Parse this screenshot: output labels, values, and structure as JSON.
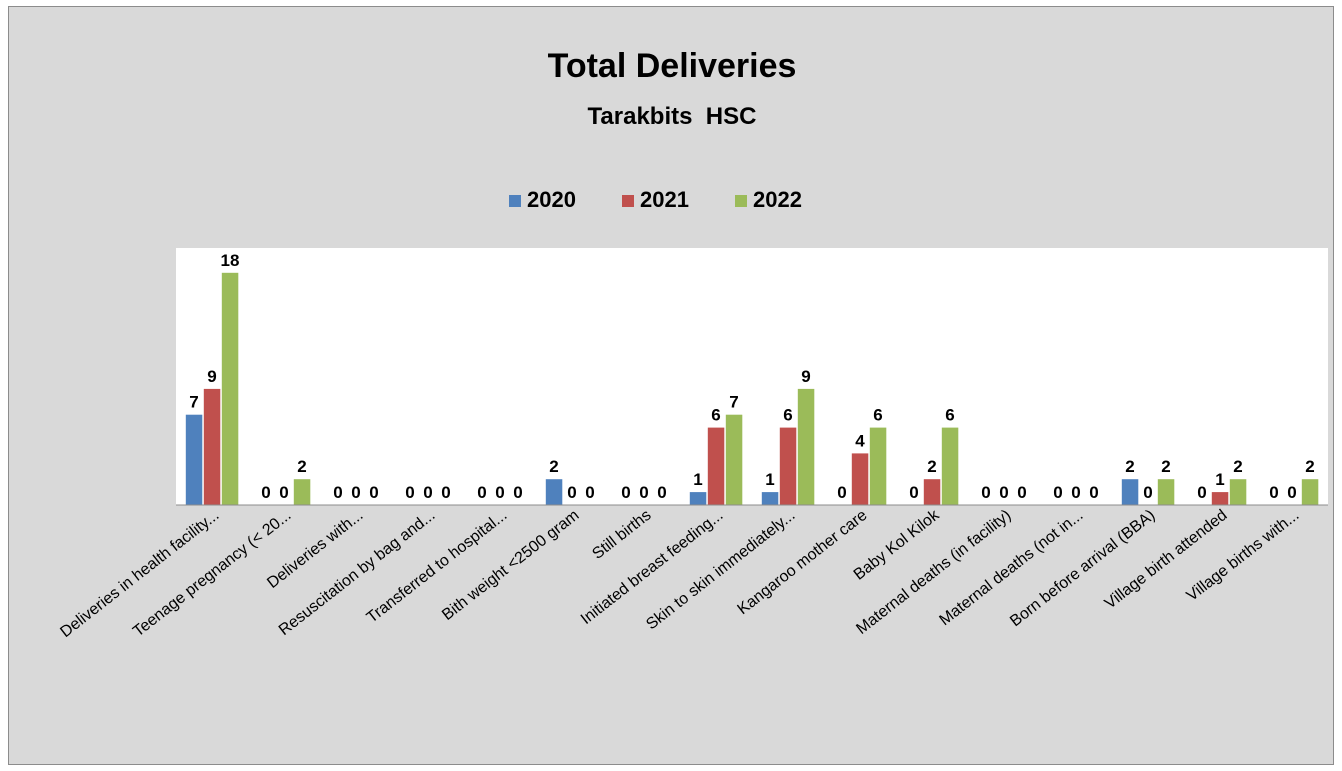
{
  "chart_data": {
    "type": "bar",
    "title": "Total Deliveries",
    "subtitle": "Tarakbits  HSC",
    "legend_position": "top",
    "grid": false,
    "ylim": [
      0,
      20
    ],
    "categories": [
      "Deliveries in health facility...",
      "Teenage pregnancy (< 20...",
      "Deliveries with...",
      "Resuscitation by bag and...",
      "Transferred to hospital...",
      "Bith weight <2500 gram",
      "Still births",
      "Initiated breast feeding...",
      "Skin to skin immediately...",
      "Kangaroo mother care",
      "Baby Kol Kilok",
      "Maternal deaths (in facility)",
      "Maternal deaths (not in...",
      "Born before arrival (BBA)",
      "Village birth attended",
      "Village births with..."
    ],
    "series": [
      {
        "name": "2020",
        "color": "#4f81bd",
        "values": [
          7,
          0,
          0,
          0,
          0,
          2,
          0,
          1,
          1,
          0,
          0,
          0,
          0,
          2,
          0,
          0
        ]
      },
      {
        "name": "2021",
        "color": "#c0504d",
        "values": [
          9,
          0,
          0,
          0,
          0,
          0,
          0,
          6,
          6,
          4,
          2,
          0,
          0,
          0,
          1,
          0
        ]
      },
      {
        "name": "2022",
        "color": "#9bbb59",
        "values": [
          18,
          2,
          0,
          0,
          0,
          0,
          0,
          7,
          9,
          6,
          6,
          0,
          0,
          2,
          2,
          2
        ]
      }
    ]
  }
}
